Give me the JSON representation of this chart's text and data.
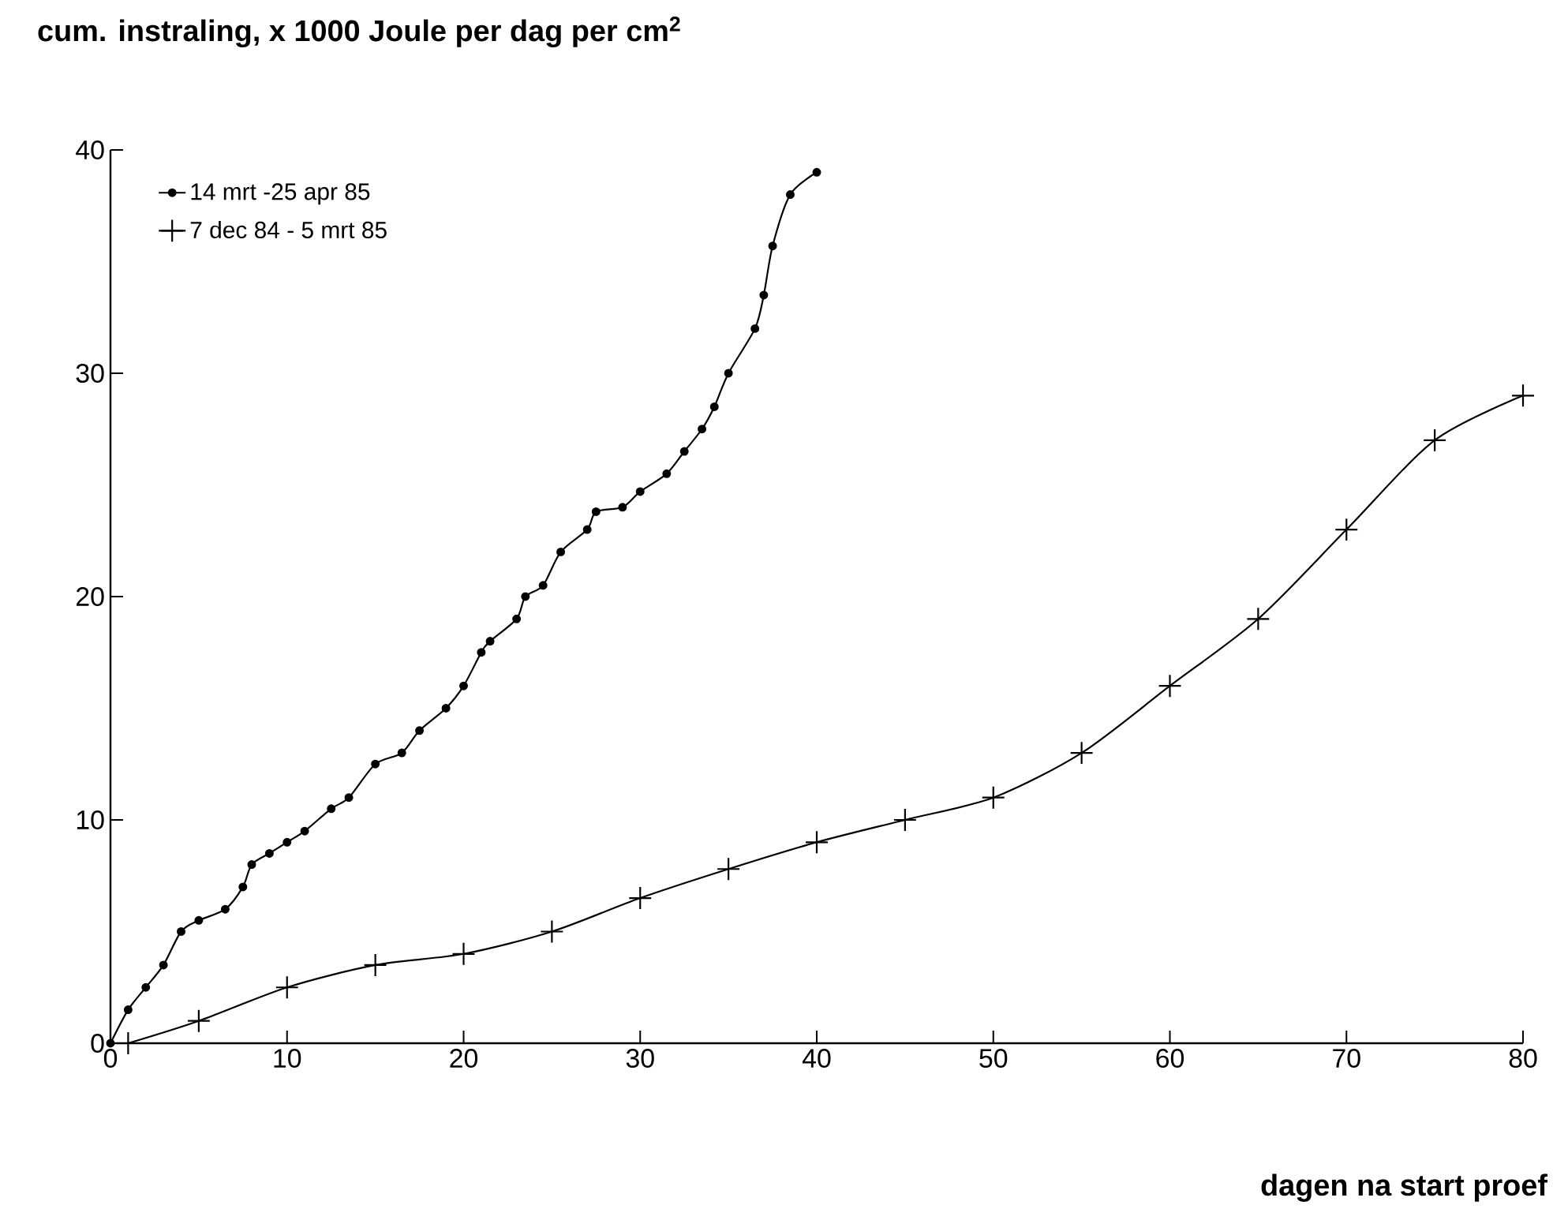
{
  "chart_data": {
    "type": "line",
    "xlabel": "dagen na start proef",
    "ylabel": "cum. instraling, x 1000 Joule per dag per cm$^{2}$",
    "xlim": [
      0,
      80
    ],
    "ylim": [
      0,
      40
    ],
    "xticks": [
      0,
      10,
      20,
      30,
      40,
      50,
      60,
      70,
      80
    ],
    "yticks": [
      0,
      10,
      20,
      30,
      40
    ],
    "grid": false,
    "legend": "top left",
    "series": [
      {
        "name": "14 mrt -25 apr 85",
        "color": "#000000",
        "marker": "circle",
        "x": [
          0,
          1,
          2,
          3,
          4,
          5,
          6.5,
          7.5,
          8,
          9,
          10,
          11,
          12.5,
          13.5,
          15,
          16.5,
          17.5,
          19,
          20,
          21,
          21.5,
          23,
          23.5,
          24.5,
          25.5,
          27,
          27.5,
          29,
          30,
          31.5,
          32.5,
          33.5,
          34.2,
          35,
          36.5,
          37,
          37.5,
          38.5,
          40
        ],
        "values": [
          0,
          1.5,
          2.5,
          3.5,
          5,
          5.5,
          6,
          7,
          8,
          8.5,
          9,
          9.5,
          10.5,
          11,
          12.5,
          13,
          14,
          15,
          16,
          17.5,
          18,
          19,
          20,
          20.5,
          22,
          23,
          23.8,
          24,
          24.7,
          25.5,
          26.5,
          27.5,
          28.5,
          30,
          32,
          33.5,
          35.7,
          38,
          39
        ]
      },
      {
        "name": "7 dec 84 - 5 mrt 85",
        "color": "#000000",
        "marker": "cross",
        "x": [
          1,
          5,
          10,
          15,
          20,
          25,
          30,
          35,
          40,
          45,
          50,
          55,
          60,
          65,
          70,
          75,
          80
        ],
        "values": [
          0,
          1,
          2.5,
          3.5,
          4,
          5,
          6.5,
          7.8,
          9,
          10,
          11,
          13,
          16,
          19,
          23,
          27,
          29
        ]
      }
    ]
  }
}
